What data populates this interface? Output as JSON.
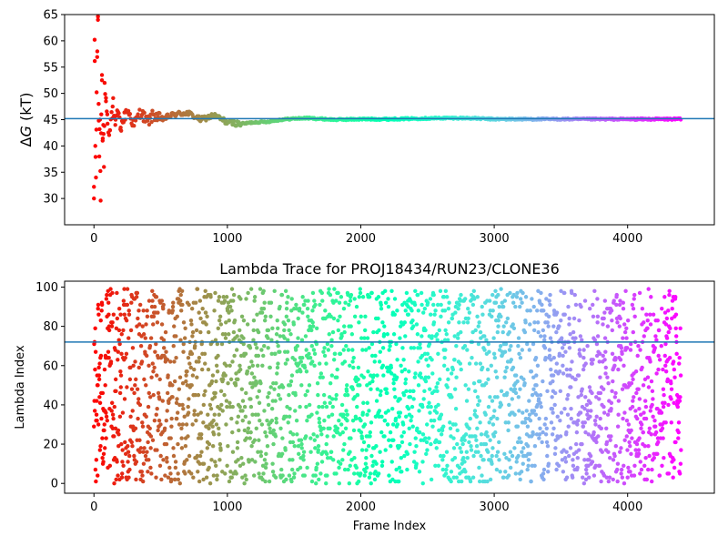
{
  "chart_data": [
    {
      "type": "scatter",
      "title": "",
      "xlabel": "",
      "ylabel_prefix": "Δ",
      "ylabel_var": "G",
      "ylabel_suffix": " (kT)",
      "xlim": [
        -220,
        4650
      ],
      "ylim": [
        25,
        65
      ],
      "xticks": [
        0,
        1000,
        2000,
        3000,
        4000
      ],
      "yticks": [
        30,
        35,
        40,
        45,
        50,
        55,
        60,
        65
      ],
      "colormap": "rainbow (red at start, violet at end)",
      "hline": {
        "y": 45.2,
        "color": "#1f77b4"
      },
      "series": [
        {
          "x": [
            0,
            5,
            10,
            15,
            20,
            25,
            30,
            35,
            40,
            45,
            50,
            55,
            60,
            65,
            70,
            75,
            80,
            90,
            100,
            120,
            140,
            160,
            180,
            200,
            250,
            300,
            350,
            400,
            450,
            500,
            600,
            700,
            800,
            900,
            1000,
            1100,
            1200,
            1300,
            1400,
            1500,
            1600,
            1800,
            2000,
            2200,
            2400,
            2600,
            2800,
            3000,
            3200,
            3400,
            3600,
            3800,
            4000,
            4200,
            4400
          ],
          "y": [
            30,
            60.2,
            40,
            34,
            50.2,
            58,
            64,
            48,
            38,
            45,
            29.6,
            46,
            53.5,
            41,
            44,
            36,
            52,
            48.5,
            46,
            43,
            47.5,
            44,
            46.5,
            43.5,
            47,
            44,
            46.5,
            44.5,
            46,
            45,
            46,
            46.3,
            45,
            45.8,
            44.5,
            44.2,
            44.5,
            44.6,
            45,
            45.2,
            45.3,
            45,
            45.1,
            45.1,
            45.2,
            45.3,
            45.3,
            45.1,
            45.1,
            45.1,
            45.1,
            45.1,
            45.1,
            45.1,
            45.1
          ],
          "color_by": "x"
        }
      ]
    },
    {
      "type": "scatter",
      "title": "Lambda Trace for PROJ18434/RUN23/CLONE36",
      "xlabel": "Frame Index",
      "ylabel": "Lambda Index",
      "xlim": [
        -220,
        4650
      ],
      "ylim": [
        -5,
        103
      ],
      "xticks": [
        0,
        1000,
        2000,
        3000,
        4000
      ],
      "yticks": [
        0,
        20,
        40,
        60,
        80,
        100
      ],
      "colormap": "rainbow (red at start, violet at end)",
      "hline": {
        "y": 72,
        "color": "#1f77b4"
      },
      "series": [
        {
          "description": "lambda index per frame, points uniformly spread across 0-99 for every frame",
          "x_range": [
            0,
            4400
          ],
          "y_range": [
            0,
            99
          ],
          "color_by": "x"
        }
      ]
    }
  ]
}
